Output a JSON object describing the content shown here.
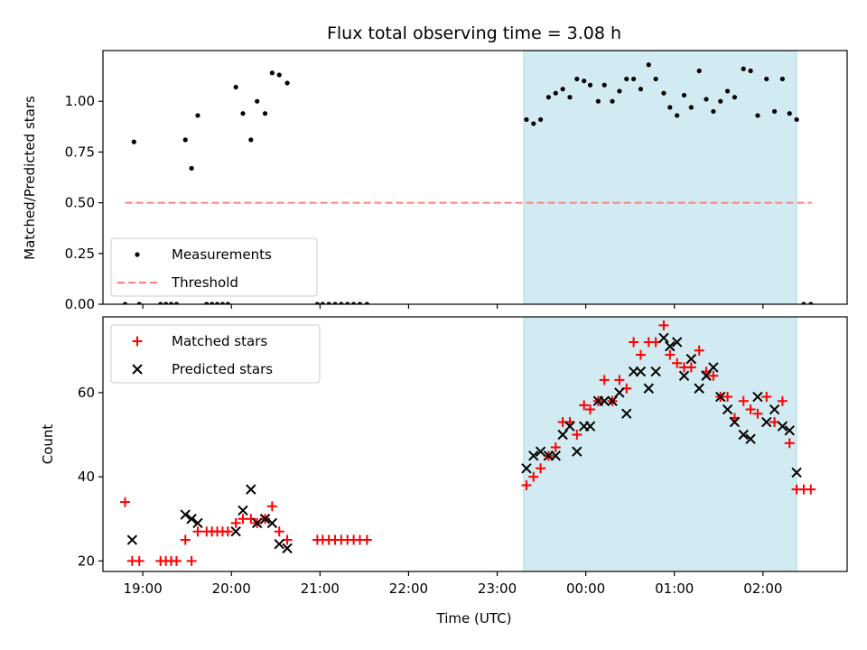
{
  "chart_data": [
    {
      "type": "scatter",
      "title": "Flux total observing time = 3.08 h",
      "xlabel": "",
      "ylabel": "Matched/Predicted stars",
      "xlim": [
        18.55,
        26.95
      ],
      "ylim": [
        0.0,
        1.25
      ],
      "x_ticks": [
        {
          "h": 19,
          "label": ""
        },
        {
          "h": 20,
          "label": ""
        },
        {
          "h": 21,
          "label": ""
        },
        {
          "h": 22,
          "label": ""
        },
        {
          "h": 23,
          "label": ""
        },
        {
          "h": 24,
          "label": ""
        },
        {
          "h": 25,
          "label": ""
        },
        {
          "h": 26,
          "label": ""
        }
      ],
      "y_ticks": [
        "0.00",
        "0.25",
        "0.50",
        "0.75",
        "1.00"
      ],
      "y_tick_values": [
        0.0,
        0.25,
        0.5,
        0.75,
        1.0
      ],
      "shaded_span": {
        "x_start": 23.3,
        "x_end": 26.38,
        "color": "#add8e6"
      },
      "legend": {
        "placement": "lower-left",
        "entries": [
          {
            "label": "Measurements",
            "marker": "dot",
            "color": "#000000"
          },
          {
            "label": "Threshold",
            "marker": "dashed-line",
            "color": "#ff8080"
          }
        ]
      },
      "series": [
        {
          "name": "Measurements",
          "marker": "dot",
          "color": "#000000",
          "points": [
            [
              18.8,
              0.0
            ],
            [
              18.9,
              0.8
            ],
            [
              18.96,
              0.0
            ],
            [
              19.2,
              0.0
            ],
            [
              19.26,
              0.0
            ],
            [
              19.32,
              0.0
            ],
            [
              19.38,
              0.0
            ],
            [
              19.48,
              0.81
            ],
            [
              19.55,
              0.67
            ],
            [
              19.62,
              0.93
            ],
            [
              19.72,
              0.0
            ],
            [
              19.78,
              0.0
            ],
            [
              19.84,
              0.0
            ],
            [
              19.9,
              0.0
            ],
            [
              19.96,
              0.0
            ],
            [
              20.05,
              1.07
            ],
            [
              20.13,
              0.94
            ],
            [
              20.22,
              0.81
            ],
            [
              20.29,
              1.0
            ],
            [
              20.38,
              0.94
            ],
            [
              20.46,
              1.14
            ],
            [
              20.54,
              1.13
            ],
            [
              20.63,
              1.09
            ],
            [
              20.97,
              0.0
            ],
            [
              21.03,
              0.0
            ],
            [
              21.1,
              0.0
            ],
            [
              21.17,
              0.0
            ],
            [
              21.24,
              0.0
            ],
            [
              21.31,
              0.0
            ],
            [
              21.38,
              0.0
            ],
            [
              21.45,
              0.0
            ],
            [
              21.53,
              0.0
            ],
            [
              23.33,
              0.91
            ],
            [
              23.41,
              0.89
            ],
            [
              23.49,
              0.91
            ],
            [
              23.58,
              1.02
            ],
            [
              23.66,
              1.04
            ],
            [
              23.74,
              1.06
            ],
            [
              23.82,
              1.02
            ],
            [
              23.9,
              1.11
            ],
            [
              23.98,
              1.1
            ],
            [
              24.05,
              1.08
            ],
            [
              24.14,
              1.0
            ],
            [
              24.21,
              1.08
            ],
            [
              24.3,
              1.0
            ],
            [
              24.38,
              1.05
            ],
            [
              24.46,
              1.11
            ],
            [
              24.54,
              1.11
            ],
            [
              24.62,
              1.06
            ],
            [
              24.71,
              1.18
            ],
            [
              24.79,
              1.11
            ],
            [
              24.88,
              1.04
            ],
            [
              24.95,
              0.97
            ],
            [
              25.03,
              0.93
            ],
            [
              25.11,
              1.03
            ],
            [
              25.19,
              0.97
            ],
            [
              25.28,
              1.15
            ],
            [
              25.36,
              1.01
            ],
            [
              25.44,
              0.95
            ],
            [
              25.52,
              1.0
            ],
            [
              25.6,
              1.05
            ],
            [
              25.68,
              1.02
            ],
            [
              25.78,
              1.16
            ],
            [
              25.86,
              1.15
            ],
            [
              25.94,
              0.93
            ],
            [
              26.04,
              1.11
            ],
            [
              26.13,
              0.95
            ],
            [
              26.22,
              1.11
            ],
            [
              26.3,
              0.94
            ],
            [
              26.38,
              0.91
            ],
            [
              26.46,
              0.0
            ],
            [
              26.54,
              0.0
            ]
          ]
        },
        {
          "name": "Threshold",
          "type": "line",
          "dashed": true,
          "color": "#ff8080",
          "points": [
            [
              18.8,
              0.5
            ],
            [
              26.55,
              0.5
            ]
          ]
        }
      ]
    },
    {
      "type": "scatter",
      "title": "",
      "xlabel": "Time (UTC)",
      "ylabel": "Count",
      "xlim": [
        18.55,
        26.95
      ],
      "ylim": [
        17.5,
        78.0
      ],
      "x_ticks": [
        {
          "h": 19,
          "label": "19:00"
        },
        {
          "h": 20,
          "label": "20:00"
        },
        {
          "h": 21,
          "label": "21:00"
        },
        {
          "h": 22,
          "label": "22:00"
        },
        {
          "h": 23,
          "label": "23:00"
        },
        {
          "h": 24,
          "label": "00:00"
        },
        {
          "h": 25,
          "label": "01:00"
        },
        {
          "h": 26,
          "label": "02:00"
        }
      ],
      "y_ticks": [
        "20",
        "40",
        "60"
      ],
      "y_tick_values": [
        20,
        40,
        60
      ],
      "shaded_span": {
        "x_start": 23.3,
        "x_end": 26.38,
        "color": "#add8e6"
      },
      "legend": {
        "placement": "top-left",
        "entries": [
          {
            "label": "Matched stars",
            "marker": "plus",
            "color": "#ff0000"
          },
          {
            "label": "Predicted stars",
            "marker": "x",
            "color": "#000000"
          }
        ]
      },
      "series": [
        {
          "name": "Matched stars",
          "marker": "plus",
          "color": "#ff0000",
          "points": [
            [
              18.8,
              34
            ],
            [
              18.88,
              20
            ],
            [
              18.96,
              20
            ],
            [
              19.2,
              20
            ],
            [
              19.26,
              20
            ],
            [
              19.32,
              20
            ],
            [
              19.38,
              20
            ],
            [
              19.48,
              25
            ],
            [
              19.55,
              20
            ],
            [
              19.62,
              27
            ],
            [
              19.72,
              27
            ],
            [
              19.78,
              27
            ],
            [
              19.84,
              27
            ],
            [
              19.9,
              27
            ],
            [
              19.96,
              27
            ],
            [
              20.05,
              29
            ],
            [
              20.13,
              30
            ],
            [
              20.22,
              30
            ],
            [
              20.29,
              29
            ],
            [
              20.38,
              30
            ],
            [
              20.46,
              33
            ],
            [
              20.54,
              27
            ],
            [
              20.63,
              25
            ],
            [
              20.97,
              25
            ],
            [
              21.03,
              25
            ],
            [
              21.1,
              25
            ],
            [
              21.17,
              25
            ],
            [
              21.24,
              25
            ],
            [
              21.31,
              25
            ],
            [
              21.38,
              25
            ],
            [
              21.45,
              25
            ],
            [
              21.53,
              25
            ],
            [
              23.33,
              38
            ],
            [
              23.41,
              40
            ],
            [
              23.49,
              42
            ],
            [
              23.58,
              45
            ],
            [
              23.66,
              47
            ],
            [
              23.74,
              53
            ],
            [
              23.82,
              53
            ],
            [
              23.9,
              50
            ],
            [
              23.98,
              57
            ],
            [
              24.05,
              56
            ],
            [
              24.14,
              58
            ],
            [
              24.21,
              63
            ],
            [
              24.3,
              58
            ],
            [
              24.38,
              63
            ],
            [
              24.46,
              61
            ],
            [
              24.54,
              72
            ],
            [
              24.62,
              69
            ],
            [
              24.71,
              72
            ],
            [
              24.79,
              72
            ],
            [
              24.88,
              76
            ],
            [
              24.95,
              69
            ],
            [
              25.03,
              67
            ],
            [
              25.11,
              66
            ],
            [
              25.19,
              66
            ],
            [
              25.28,
              70
            ],
            [
              25.36,
              65
            ],
            [
              25.44,
              64
            ],
            [
              25.52,
              59
            ],
            [
              25.6,
              59
            ],
            [
              25.68,
              54
            ],
            [
              25.78,
              58
            ],
            [
              25.86,
              56
            ],
            [
              25.94,
              55
            ],
            [
              26.04,
              59
            ],
            [
              26.13,
              53
            ],
            [
              26.22,
              58
            ],
            [
              26.3,
              48
            ],
            [
              26.38,
              37
            ],
            [
              26.46,
              37
            ],
            [
              26.54,
              37
            ]
          ]
        },
        {
          "name": "Predicted stars",
          "marker": "x",
          "color": "#000000",
          "points": [
            [
              18.88,
              25
            ],
            [
              19.48,
              31
            ],
            [
              19.55,
              30
            ],
            [
              19.62,
              29
            ],
            [
              20.05,
              27
            ],
            [
              20.13,
              32
            ],
            [
              20.22,
              37
            ],
            [
              20.29,
              29
            ],
            [
              20.38,
              30
            ],
            [
              20.46,
              29
            ],
            [
              20.54,
              24
            ],
            [
              20.63,
              23
            ],
            [
              23.33,
              42
            ],
            [
              23.41,
              45
            ],
            [
              23.49,
              46
            ],
            [
              23.58,
              45
            ],
            [
              23.66,
              45
            ],
            [
              23.74,
              50
            ],
            [
              23.82,
              52
            ],
            [
              23.9,
              46
            ],
            [
              23.98,
              52
            ],
            [
              24.05,
              52
            ],
            [
              24.14,
              58
            ],
            [
              24.21,
              58
            ],
            [
              24.3,
              58
            ],
            [
              24.38,
              60
            ],
            [
              24.46,
              55
            ],
            [
              24.54,
              65
            ],
            [
              24.62,
              65
            ],
            [
              24.71,
              61
            ],
            [
              24.79,
              65
            ],
            [
              24.88,
              73
            ],
            [
              24.95,
              71
            ],
            [
              25.03,
              72
            ],
            [
              25.11,
              64
            ],
            [
              25.19,
              68
            ],
            [
              25.28,
              61
            ],
            [
              25.36,
              64
            ],
            [
              25.44,
              66
            ],
            [
              25.52,
              59
            ],
            [
              25.6,
              56
            ],
            [
              25.68,
              53
            ],
            [
              25.78,
              50
            ],
            [
              25.86,
              49
            ],
            [
              25.94,
              59
            ],
            [
              26.04,
              53
            ],
            [
              26.13,
              56
            ],
            [
              26.22,
              52
            ],
            [
              26.3,
              51
            ],
            [
              26.38,
              41
            ]
          ]
        }
      ]
    }
  ]
}
